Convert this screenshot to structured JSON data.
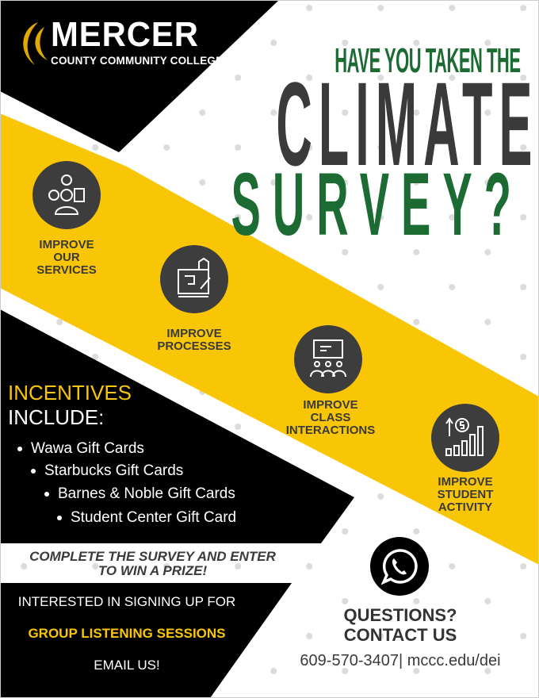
{
  "colors": {
    "yellow": "#f9c606",
    "green": "#1c6b33",
    "dark": "#3d3d3d",
    "black": "#000000"
  },
  "logo": {
    "name": "MERCER",
    "subtitle": "COUNTY COMMUNITY COLLEGE"
  },
  "headline": {
    "line1": "HAVE YOU TAKEN THE",
    "line2": "CLIMATE",
    "line3": "SURVEY?"
  },
  "goals": [
    {
      "icon": "person-gear-clipboard-icon",
      "label1": "IMPROVE",
      "label2": "OUR",
      "label3": "SERVICES"
    },
    {
      "icon": "blueprint-house-icon",
      "label1": "IMPROVE",
      "label2": "PROCESSES"
    },
    {
      "icon": "classroom-presentation-icon",
      "label1": "IMPROVE",
      "label2": "CLASS",
      "label3": "INTERACTIONS"
    },
    {
      "icon": "growth-chart-dollar-icon",
      "label1": "IMPROVE",
      "label2": "STUDENT",
      "label3": "ACTIVITY"
    }
  ],
  "incentives": {
    "title": "INCENTIVES",
    "subtitle": "INCLUDE:",
    "items": [
      "Wawa Gift Cards",
      "Starbucks Gift Cards",
      "Barnes & Noble Gift Cards",
      "Student Center Gift Card"
    ]
  },
  "prize": {
    "line1": "COMPLETE THE SURVEY AND ENTER",
    "line2": "TO WIN A PRIZE!"
  },
  "sessions": {
    "line1": "INTERESTED IN SIGNING UP FOR",
    "line2": "GROUP LISTENING SESSIONS",
    "line3": "EMAIL US!"
  },
  "contact": {
    "icon": "whatsapp-phone-icon",
    "line1": "QUESTIONS?",
    "line2": "CONTACT US",
    "details": "609-570-3407| mccc.edu/dei"
  }
}
